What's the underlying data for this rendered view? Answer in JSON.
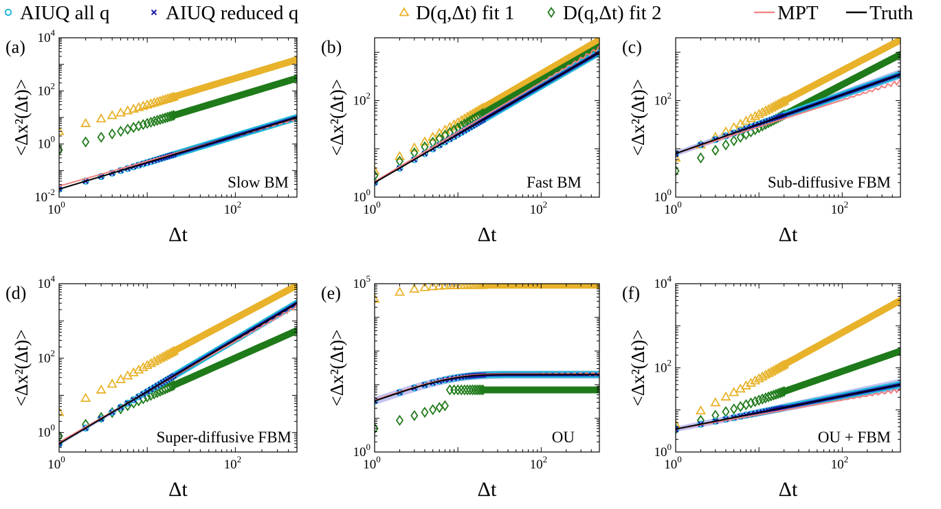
{
  "colors": {
    "aiuq_all": "#22b8d6",
    "aiuq_reduced": "#1a1aa8",
    "fit1": "#e8b22a",
    "fit2": "#1f7a1a",
    "mpt": "#f08080",
    "truth": "#000000",
    "band": "#8f8fe6"
  },
  "legend": [
    {
      "key": "aiuq_all",
      "label": "AIUQ all q",
      "marker": "circle"
    },
    {
      "key": "aiuq_reduced",
      "label": "AIUQ reduced q",
      "marker": "x"
    },
    {
      "key": "fit1",
      "label": "D(q,Δt) fit 1",
      "marker": "triangle"
    },
    {
      "key": "fit2",
      "label": "D(q,Δt) fit 2",
      "marker": "diamond"
    },
    {
      "key": "mpt",
      "label": "MPT",
      "marker": "line"
    },
    {
      "key": "truth",
      "label": "Truth",
      "marker": "line"
    }
  ],
  "chart_data": [
    {
      "panel": "(a)",
      "annotation": "Slow BM",
      "type": "scatter",
      "xlabel": "Δt",
      "ylabel": "<Δx²(Δt)>",
      "x_scale": "log",
      "y_scale": "log",
      "xlim": [
        1,
        500
      ],
      "ylim": [
        0.01,
        10000
      ],
      "xticks": [
        {
          "v": 1,
          "m": "10",
          "e": "0"
        },
        {
          "v": 100,
          "m": "10",
          "e": "2"
        }
      ],
      "yticks": [
        {
          "v": 0.01,
          "m": "10",
          "e": "-2"
        },
        {
          "v": 1,
          "m": "10",
          "e": "0"
        },
        {
          "v": 100,
          "m": "10",
          "e": "2"
        },
        {
          "v": 10000,
          "m": "10",
          "e": "4"
        }
      ],
      "truth": {
        "x": [
          1,
          500
        ],
        "y": [
          0.02,
          10
        ]
      },
      "aiuq": {
        "x": [
          1,
          500
        ],
        "y": [
          0.02,
          10
        ]
      },
      "mpt": {
        "x": [
          1,
          500
        ],
        "y": [
          0.026,
          9
        ]
      },
      "band": null,
      "fit1": {
        "x": [
          1,
          500
        ],
        "y": [
          3,
          1500
        ]
      },
      "fit2": {
        "x": [
          1,
          500
        ],
        "y": [
          0.6,
          300
        ]
      }
    },
    {
      "panel": "(b)",
      "annotation": "Fast BM",
      "type": "scatter",
      "xlabel": "Δt",
      "ylabel": "<Δx²(Δt)>",
      "x_scale": "log",
      "y_scale": "log",
      "xlim": [
        1,
        500
      ],
      "ylim": [
        1,
        2000
      ],
      "xticks": [
        {
          "v": 1,
          "m": "10",
          "e": "0"
        },
        {
          "v": 100,
          "m": "10",
          "e": "2"
        }
      ],
      "yticks": [
        {
          "v": 1,
          "m": "10",
          "e": "0"
        },
        {
          "v": 100,
          "m": "10",
          "e": "2"
        }
      ],
      "truth": {
        "x": [
          1,
          500
        ],
        "y": [
          2,
          1000
        ]
      },
      "aiuq": {
        "x": [
          1,
          500
        ],
        "y": [
          2,
          1000
        ]
      },
      "mpt": {
        "x": [
          1,
          500
        ],
        "y": [
          2.1,
          1250
        ]
      },
      "band": null,
      "fit1": {
        "x": [
          1,
          500
        ],
        "y": [
          3.5,
          1800
        ]
      },
      "fit2": {
        "x": [
          1,
          500
        ],
        "y": [
          2.8,
          1300
        ]
      }
    },
    {
      "panel": "(c)",
      "annotation": "Sub-diffusive FBM",
      "type": "scatter",
      "xlabel": "Δt",
      "ylabel": "<Δx²(Δt)>",
      "x_scale": "log",
      "y_scale": "log",
      "xlim": [
        1,
        500
      ],
      "ylim": [
        1,
        2000
      ],
      "xticks": [
        {
          "v": 1,
          "m": "10",
          "e": "0"
        },
        {
          "v": 100,
          "m": "10",
          "e": "2"
        }
      ],
      "yticks": [
        {
          "v": 1,
          "m": "10",
          "e": "0"
        },
        {
          "v": 100,
          "m": "10",
          "e": "2"
        }
      ],
      "truth": {
        "x": [
          1,
          500
        ],
        "y": [
          8,
          350
        ]
      },
      "aiuq": {
        "x": [
          1,
          500
        ],
        "y": [
          8,
          350
        ]
      },
      "mpt": {
        "x": [
          1,
          500
        ],
        "y": [
          8,
          250
        ]
      },
      "band": {
        "x": [
          1,
          500
        ],
        "lower": [
          7,
          280
        ],
        "upper": [
          9,
          450
        ]
      },
      "fit1": {
        "x": [
          1,
          500
        ],
        "y": [
          6.5,
          1800
        ]
      },
      "fit2": {
        "x": [
          1,
          500
        ],
        "y": [
          3.5,
          900
        ]
      }
    },
    {
      "panel": "(d)",
      "annotation": "Super-diffusive FBM",
      "type": "scatter",
      "xlabel": "Δt",
      "ylabel": "<Δx²(Δt)>",
      "x_scale": "log",
      "y_scale": "log",
      "xlim": [
        1,
        500
      ],
      "ylim": [
        0.3,
        10000
      ],
      "xticks": [
        {
          "v": 1,
          "m": "10",
          "e": "0"
        },
        {
          "v": 100,
          "m": "10",
          "e": "2"
        }
      ],
      "yticks": [
        {
          "v": 1,
          "m": "10",
          "e": "0"
        },
        {
          "v": 100,
          "m": "10",
          "e": "2"
        },
        {
          "v": 10000,
          "m": "10",
          "e": "4"
        }
      ],
      "truth": {
        "x": [
          1,
          500
        ],
        "y": [
          0.5,
          3000
        ]
      },
      "aiuq": {
        "x": [
          1,
          500
        ],
        "y": [
          0.5,
          3000
        ]
      },
      "mpt": {
        "x": [
          1,
          500
        ],
        "y": [
          0.55,
          2500
        ]
      },
      "band": {
        "x": [
          1,
          500
        ],
        "lower": [
          0.45,
          2500
        ],
        "upper": [
          0.55,
          3500
        ]
      },
      "fit1": {
        "x": [
          1,
          500
        ],
        "y": [
          3.5,
          9000
        ]
      },
      "fit2": {
        "x": [
          1,
          500
        ],
        "y": [
          0.8,
          550
        ]
      }
    },
    {
      "panel": "(e)",
      "annotation": "OU",
      "type": "scatter",
      "xlabel": "Δt",
      "ylabel": "<Δx²(Δt)>",
      "x_scale": "log",
      "y_scale": "log",
      "xlim": [
        1,
        500
      ],
      "ylim": [
        1,
        100000
      ],
      "xticks": [
        {
          "v": 1,
          "m": "10",
          "e": "0"
        },
        {
          "v": 100,
          "m": "10",
          "e": "2"
        }
      ],
      "yticks": [
        {
          "v": 1,
          "m": "10",
          "e": "0"
        },
        {
          "v": 100000,
          "m": "10",
          "e": "5"
        }
      ],
      "truth": {
        "x": [
          1,
          500
        ],
        "y": [
          2.5,
          200
        ]
      },
      "aiuq": {
        "x": [
          1,
          500
        ],
        "y": [
          2.5,
          200
        ]
      },
      "mpt": {
        "x": [
          1,
          500
        ],
        "y": [
          2.6,
          210
        ]
      },
      "band": {
        "x": [
          1,
          500
        ],
        "lower": [
          2.2,
          150
        ],
        "upper": [
          2.9,
          260
        ]
      },
      "fit1": {
        "x": [
          1,
          500
        ],
        "y": [
          35000,
          90000
        ]
      },
      "fit2": {
        "x": [
          1,
          500
        ],
        "y": [
          5,
          70
        ]
      }
    },
    {
      "panel": "(f)",
      "annotation": "OU + FBM",
      "type": "scatter",
      "xlabel": "Δt",
      "ylabel": "<Δx²(Δt)>",
      "x_scale": "log",
      "y_scale": "log",
      "xlim": [
        1,
        500
      ],
      "ylim": [
        1,
        10000
      ],
      "xticks": [
        {
          "v": 1,
          "m": "10",
          "e": "0"
        },
        {
          "v": 100,
          "m": "10",
          "e": "2"
        }
      ],
      "yticks": [
        {
          "v": 1,
          "m": "10",
          "e": "0"
        },
        {
          "v": 100,
          "m": "10",
          "e": "2"
        },
        {
          "v": 10000,
          "m": "10",
          "e": "4"
        }
      ],
      "truth": {
        "x": [
          1,
          500
        ],
        "y": [
          3.5,
          40
        ]
      },
      "aiuq": {
        "x": [
          1,
          500
        ],
        "y": [
          3.5,
          40
        ]
      },
      "mpt": {
        "x": [
          1,
          500
        ],
        "y": [
          3.5,
          30
        ]
      },
      "band": {
        "x": [
          1,
          500
        ],
        "lower": [
          3,
          30
        ],
        "upper": [
          4,
          55
        ]
      },
      "fit1": {
        "x": [
          1,
          500
        ],
        "y": [
          4.5,
          4000
        ]
      },
      "fit2": {
        "x": [
          1,
          500
        ],
        "y": [
          3.5,
          250
        ]
      }
    }
  ]
}
